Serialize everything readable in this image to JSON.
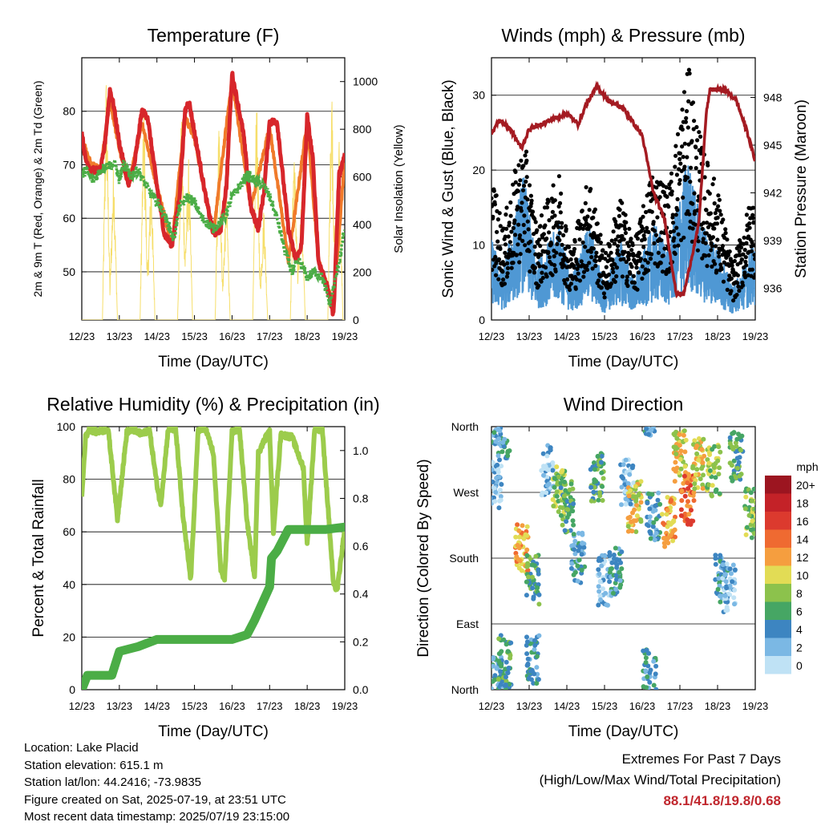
{
  "location_label": "Location: Lake Placid",
  "elevation_label": "Station elevation: 615.1 m",
  "latlon_label": "Station lat/lon: 44.2416; -73.9835",
  "created_label": "Figure created on Sat, 2025-07-19, at 23:51 UTC",
  "recent_label": "Most recent data timestamp: 2025/07/19 23:15:00",
  "extremes": {
    "title": "Extremes For Past 7 Days",
    "subtitle": "(High/Low/Max Wind/Total Precipitation)",
    "values": "88.1/41.8/19.8/0.68"
  },
  "colors": {
    "temp2m": "#d7262b",
    "temp9m": "#f07a2a",
    "dewpoint": "#4bad46",
    "solar": "#f6de6a",
    "wind": "#4f98d4",
    "gust": "#000000",
    "pressure": "#a41b22",
    "rh": "#9ccc4c",
    "precip": "#4bad46"
  },
  "chart_data": [
    {
      "id": "temperature",
      "type": "line",
      "title": "Temperature (F)",
      "xlabel": "Time (Day/UTC)",
      "ylabel": "2m & 9m T (Red, Orange) & 2m Td (Green)",
      "y2label": "Solar Insolation (Yellow)",
      "x_ticks": [
        "12/23",
        "13/23",
        "14/23",
        "15/23",
        "16/23",
        "17/23",
        "18/23",
        "19/23"
      ],
      "ylim": [
        41,
        90
      ],
      "y_ticks": [
        50,
        60,
        70,
        80
      ],
      "y2lim": [
        0,
        1100
      ],
      "y2_ticks": [
        0,
        200,
        400,
        600,
        800,
        1000
      ],
      "grid": true,
      "series": [
        {
          "key": "temp2m",
          "x": [
            0,
            0.1,
            0.25,
            0.5,
            0.6,
            0.75,
            0.85,
            1.0,
            1.25,
            1.4,
            1.6,
            1.75,
            2.0,
            2.2,
            2.4,
            2.6,
            2.75,
            2.85,
            3.0,
            3.3,
            3.5,
            3.7,
            3.85,
            4.0,
            4.3,
            4.5,
            4.7,
            4.85,
            5.0,
            5.2,
            5.5,
            5.7,
            5.85,
            6.0,
            6.15,
            6.3,
            6.5,
            6.7,
            6.85,
            7.0
          ],
          "y": [
            76,
            71,
            69,
            69,
            73,
            84,
            81,
            74,
            66,
            70,
            80,
            79,
            66,
            57,
            55,
            64,
            80,
            82,
            76,
            64,
            57,
            58,
            66,
            87,
            76,
            62,
            58,
            65,
            78,
            78,
            58,
            52,
            55,
            79,
            71,
            52,
            48,
            42,
            68,
            72
          ]
        },
        {
          "key": "temp9m",
          "x": [
            0,
            0.25,
            0.5,
            0.75,
            1.0,
            1.25,
            1.6,
            2.0,
            2.4,
            2.75,
            3.0,
            3.5,
            4.0,
            4.5,
            5.0,
            5.5,
            6.0,
            6.3,
            6.7,
            7.0
          ],
          "y": [
            75,
            70,
            69,
            82,
            73,
            66,
            78,
            66,
            55,
            79,
            75,
            57,
            86,
            62,
            77,
            52,
            78,
            52,
            44,
            71
          ]
        },
        {
          "key": "dewpoint",
          "x": [
            0,
            0.1,
            0.3,
            0.5,
            0.7,
            0.9,
            1.0,
            1.1,
            1.3,
            1.5,
            1.8,
            2.1,
            2.3,
            2.45,
            2.6,
            2.8,
            3.0,
            3.2,
            3.5,
            3.8,
            4.0,
            4.2,
            4.4,
            4.6,
            4.85,
            5.0,
            5.2,
            5.4,
            5.6,
            5.8,
            6.0,
            6.2,
            6.4,
            6.6,
            6.8,
            7.0
          ],
          "y": [
            68,
            69,
            67,
            69,
            70,
            70,
            67,
            70,
            68,
            69,
            65,
            62,
            59,
            56,
            62,
            64,
            63,
            60,
            58,
            60,
            64,
            66,
            68,
            67,
            66,
            64,
            60,
            54,
            50,
            52,
            49,
            50,
            49,
            44,
            50,
            58
          ]
        },
        {
          "key": "solar",
          "x": [
            0,
            0.55,
            0.65,
            0.75,
            0.85,
            0.95,
            1.55,
            1.65,
            1.75,
            1.85,
            1.95,
            2.55,
            2.65,
            2.75,
            2.85,
            2.95,
            3.55,
            3.65,
            3.75,
            3.85,
            3.95,
            4.55,
            4.65,
            4.75,
            4.85,
            4.95,
            5.55,
            5.65,
            5.75,
            5.85,
            5.95,
            6.55,
            6.65,
            6.75,
            6.85,
            6.95,
            7.0
          ],
          "y": [
            0,
            0,
            1050,
            150,
            700,
            0,
            0,
            950,
            200,
            650,
            0,
            0,
            900,
            300,
            700,
            0,
            0,
            900,
            150,
            600,
            0,
            0,
            1000,
            150,
            500,
            0,
            0,
            800,
            200,
            550,
            0,
            0,
            1100,
            100,
            800,
            0,
            0
          ]
        }
      ]
    },
    {
      "id": "winds",
      "type": "scatter",
      "title": "Winds (mph) & Pressure (mb)",
      "xlabel": "Time (Day/UTC)",
      "ylabel": "Sonic Wind & Gust (Blue, Black)",
      "y2label": "Station Pressure (Maroon)",
      "x_ticks": [
        "12/23",
        "13/23",
        "14/23",
        "15/23",
        "16/23",
        "17/23",
        "18/23",
        "19/23"
      ],
      "ylim": [
        0,
        35
      ],
      "y_ticks": [
        0,
        10,
        20,
        30
      ],
      "y2lim": [
        934,
        950.5
      ],
      "y2_ticks": [
        936,
        939,
        942,
        945,
        948
      ],
      "grid": true,
      "series": [
        {
          "key": "wind",
          "peaks_x": [
            0.0,
            0.3,
            0.85,
            1.2,
            1.8,
            2.1,
            2.6,
            3.0,
            3.4,
            3.8,
            4.3,
            4.7,
            5.2,
            5.6,
            6.0,
            6.4,
            6.9
          ],
          "peaks_y": [
            10,
            6,
            18,
            7,
            12,
            5,
            12,
            4,
            10,
            5,
            12,
            9,
            20,
            12,
            9,
            4,
            9
          ]
        },
        {
          "key": "gust",
          "peaks_x": [
            0.0,
            0.3,
            0.85,
            1.2,
            1.8,
            2.1,
            2.6,
            3.0,
            3.4,
            3.8,
            4.3,
            4.7,
            5.2,
            5.6,
            6.0,
            6.4,
            6.9
          ],
          "peaks_y": [
            19,
            12,
            24,
            12,
            19,
            9,
            19,
            8,
            16,
            10,
            20,
            17,
            33,
            22,
            17,
            7,
            16
          ]
        },
        {
          "key": "pressure",
          "x": [
            0,
            0.2,
            0.5,
            0.8,
            1.0,
            1.5,
            2.0,
            2.3,
            2.5,
            2.8,
            3.1,
            3.5,
            4.0,
            4.3,
            4.6,
            4.9,
            5.1,
            5.5,
            5.7,
            5.8,
            6.2,
            6.5,
            6.8,
            7.0
          ],
          "y": [
            945.7,
            946.6,
            946.0,
            944.8,
            946.0,
            946.5,
            947.0,
            946.3,
            947.5,
            948.7,
            947.8,
            947.3,
            945.6,
            942.0,
            940.3,
            935.7,
            935.6,
            940.0,
            947.0,
            948.5,
            948.5,
            947.8,
            945.7,
            944.0
          ]
        }
      ]
    },
    {
      "id": "humidity",
      "type": "line",
      "title": "Relative Humidity (%) & Precipitation (in)",
      "xlabel": "Time (Day/UTC)",
      "ylabel": "Percent & Total Rainfall",
      "x_ticks": [
        "12/23",
        "13/23",
        "14/23",
        "15/23",
        "16/23",
        "17/23",
        "18/23",
        "19/23"
      ],
      "ylim": [
        0,
        100
      ],
      "y_ticks": [
        0,
        20,
        40,
        60,
        80,
        100
      ],
      "y2lim": [
        0.0,
        1.1
      ],
      "y2_ticks": [
        0.0,
        0.2,
        0.4,
        0.6,
        0.8,
        1.0
      ],
      "grid": true,
      "series": [
        {
          "key": "rh",
          "x": [
            0,
            0.1,
            0.2,
            0.4,
            0.7,
            0.8,
            0.95,
            1.2,
            1.35,
            1.6,
            1.8,
            2.0,
            2.1,
            2.3,
            2.5,
            2.7,
            2.9,
            3.1,
            3.3,
            3.5,
            3.7,
            3.8,
            4.0,
            4.2,
            4.4,
            4.6,
            4.7,
            4.9,
            5.0,
            5.1,
            5.3,
            5.6,
            5.9,
            6.0,
            6.2,
            6.4,
            6.5,
            6.7,
            6.8,
            7.0
          ],
          "y": [
            73,
            96,
            99,
            98,
            99,
            86,
            65,
            98,
            99,
            97,
            99,
            78,
            70,
            99,
            99,
            65,
            42,
            99,
            99,
            90,
            46,
            41,
            98,
            99,
            64,
            43,
            90,
            96,
            98,
            60,
            97,
            96,
            84,
            55,
            99,
            99,
            80,
            40,
            38,
            61
          ]
        },
        {
          "key": "precip",
          "x": [
            0,
            0.15,
            0.8,
            1.0,
            1.5,
            2.0,
            2.5,
            3.0,
            4.0,
            4.4,
            4.6,
            4.8,
            5.0,
            5.05,
            5.2,
            5.5,
            6.0,
            6.5,
            7.0
          ],
          "y": [
            0,
            0.06,
            0.06,
            0.16,
            0.18,
            0.21,
            0.21,
            0.21,
            0.21,
            0.23,
            0.29,
            0.36,
            0.43,
            0.55,
            0.58,
            0.67,
            0.67,
            0.67,
            0.68
          ]
        }
      ]
    },
    {
      "id": "wind_direction",
      "type": "scatter",
      "title": "Wind Direction",
      "xlabel": "Time (Day/UTC)",
      "ylabel": "Direction (Colored By Speed)",
      "x_ticks": [
        "12/23",
        "13/23",
        "14/23",
        "15/23",
        "16/23",
        "17/23",
        "18/23",
        "19/23"
      ],
      "y_ticks": [
        "North",
        "East",
        "South",
        "West",
        "North"
      ],
      "ylim": [
        0,
        360
      ],
      "colorbar": {
        "title": "mph",
        "labels": [
          "20+",
          "18",
          "16",
          "14",
          "12",
          "10",
          "8",
          "6",
          "4",
          "2",
          "0"
        ],
        "colors": [
          "#9c1520",
          "#c42228",
          "#dc3a2e",
          "#ef6a31",
          "#f59e3f",
          "#e2dc55",
          "#8cc24c",
          "#46a664",
          "#3d85c1",
          "#7bb8e4",
          "#bfe2f5"
        ]
      },
      "clusters": [
        {
          "x": 0.1,
          "y": 10,
          "s": 4
        },
        {
          "x": 0.1,
          "y": 280,
          "s": 2
        },
        {
          "x": 0.35,
          "y": 350,
          "s": 4
        },
        {
          "x": 0.35,
          "y": 40,
          "s": 6
        },
        {
          "x": 0.8,
          "y": 195,
          "s": 12
        },
        {
          "x": 1.1,
          "y": 40,
          "s": 4
        },
        {
          "x": 1.1,
          "y": 150,
          "s": 6
        },
        {
          "x": 1.5,
          "y": 300,
          "s": 2
        },
        {
          "x": 1.8,
          "y": 270,
          "s": 8
        },
        {
          "x": 2.0,
          "y": 250,
          "s": 6
        },
        {
          "x": 2.3,
          "y": 180,
          "s": 4
        },
        {
          "x": 2.8,
          "y": 290,
          "s": 6
        },
        {
          "x": 3.0,
          "y": 150,
          "s": 2
        },
        {
          "x": 3.3,
          "y": 160,
          "s": 4
        },
        {
          "x": 3.6,
          "y": 280,
          "s": 2
        },
        {
          "x": 3.8,
          "y": 250,
          "s": 10
        },
        {
          "x": 4.2,
          "y": 20,
          "s": 4
        },
        {
          "x": 4.3,
          "y": 240,
          "s": 4
        },
        {
          "x": 4.7,
          "y": 230,
          "s": 12
        },
        {
          "x": 5.0,
          "y": 320,
          "s": 10
        },
        {
          "x": 5.2,
          "y": 260,
          "s": 14
        },
        {
          "x": 5.5,
          "y": 310,
          "s": 10
        },
        {
          "x": 5.9,
          "y": 300,
          "s": 8
        },
        {
          "x": 6.1,
          "y": 150,
          "s": 4
        },
        {
          "x": 6.3,
          "y": 140,
          "s": 2
        },
        {
          "x": 6.5,
          "y": 320,
          "s": 6
        },
        {
          "x": 6.9,
          "y": 240,
          "s": 8
        }
      ]
    }
  ]
}
